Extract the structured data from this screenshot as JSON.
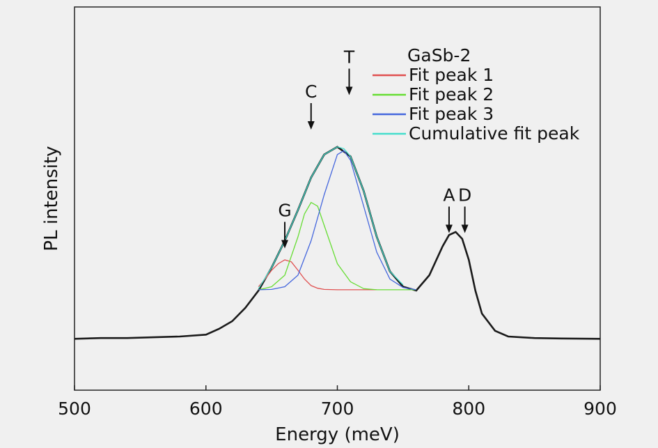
{
  "chart_data": {
    "type": "line",
    "title": "",
    "xlabel": "Energy (meV)",
    "ylabel": "PL intensity",
    "xlim": [
      500,
      900
    ],
    "ylim": [
      0,
      1
    ],
    "x_ticks": [
      500,
      600,
      700,
      800,
      900
    ],
    "y_ticks_shown": false,
    "grid": false,
    "legend": {
      "position": "top-right",
      "title": "GaSb-2",
      "entries": [
        {
          "label": "Fit peak 1",
          "color": "#e05050"
        },
        {
          "label": "Fit peak 2",
          "color": "#66dd33"
        },
        {
          "label": "Fit peak 3",
          "color": "#4466dd"
        },
        {
          "label": "Cumulative fit peak",
          "color": "#44ddcc"
        }
      ]
    },
    "annotations": [
      {
        "label": "G",
        "x": 660,
        "y": 0.37
      },
      {
        "label": "C",
        "x": 680,
        "y": 0.68
      },
      {
        "label": "T",
        "x": 709,
        "y": 0.77
      },
      {
        "label": "A",
        "x": 785,
        "y": 0.41
      },
      {
        "label": "D",
        "x": 797,
        "y": 0.41
      }
    ],
    "series": [
      {
        "name": "Data",
        "color": "#1a1a1a",
        "x": [
          500,
          520,
          540,
          560,
          580,
          600,
          610,
          620,
          630,
          640,
          650,
          660,
          670,
          680,
          690,
          700,
          710,
          720,
          730,
          740,
          750,
          760,
          770,
          780,
          785,
          790,
          795,
          800,
          805,
          810,
          820,
          830,
          850,
          870,
          900
        ],
        "y": [
          0.134,
          0.136,
          0.136,
          0.138,
          0.14,
          0.145,
          0.16,
          0.18,
          0.215,
          0.26,
          0.32,
          0.39,
          0.47,
          0.555,
          0.615,
          0.635,
          0.61,
          0.52,
          0.4,
          0.31,
          0.27,
          0.26,
          0.3,
          0.375,
          0.405,
          0.413,
          0.395,
          0.34,
          0.26,
          0.2,
          0.155,
          0.14,
          0.136,
          0.135,
          0.134
        ]
      },
      {
        "name": "Fit peak 1",
        "color": "#e05050",
        "x": [
          640,
          645,
          650,
          655,
          660,
          665,
          670,
          675,
          680,
          685,
          690,
          700,
          710,
          720,
          730
        ],
        "y": [
          0.27,
          0.29,
          0.313,
          0.33,
          0.34,
          0.335,
          0.313,
          0.29,
          0.273,
          0.266,
          0.263,
          0.262,
          0.262,
          0.262,
          0.262
        ]
      },
      {
        "name": "Fit peak 2",
        "color": "#66dd33",
        "x": [
          640,
          650,
          660,
          670,
          675,
          680,
          685,
          690,
          700,
          710,
          720,
          730,
          740,
          750,
          760
        ],
        "y": [
          0.262,
          0.27,
          0.3,
          0.4,
          0.46,
          0.49,
          0.48,
          0.43,
          0.33,
          0.283,
          0.265,
          0.262,
          0.262,
          0.262,
          0.262
        ]
      },
      {
        "name": "Fit peak 3",
        "color": "#4466dd",
        "x": [
          640,
          650,
          660,
          670,
          680,
          690,
          700,
          705,
          710,
          720,
          730,
          740,
          750,
          760
        ],
        "y": [
          0.262,
          0.263,
          0.27,
          0.3,
          0.39,
          0.51,
          0.615,
          0.625,
          0.6,
          0.48,
          0.36,
          0.29,
          0.268,
          0.262
        ]
      },
      {
        "name": "Cumulative fit peak",
        "color": "#44ddcc",
        "x": [
          640,
          650,
          660,
          670,
          680,
          690,
          700,
          705,
          710,
          720,
          730,
          740,
          750
        ],
        "y": [
          0.265,
          0.32,
          0.39,
          0.47,
          0.555,
          0.615,
          0.635,
          0.63,
          0.61,
          0.52,
          0.4,
          0.31,
          0.275
        ]
      }
    ]
  }
}
